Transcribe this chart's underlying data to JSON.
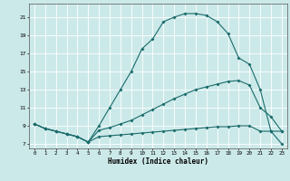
{
  "xlabel": "Humidex (Indice chaleur)",
  "background_color": "#cce9e9",
  "grid_color": "#ffffff",
  "line_color": "#1a6b6b",
  "xlim": [
    -0.5,
    23.5
  ],
  "ylim": [
    6.5,
    22.5
  ],
  "xticks": [
    0,
    1,
    2,
    3,
    4,
    5,
    6,
    7,
    8,
    9,
    10,
    11,
    12,
    13,
    14,
    15,
    16,
    17,
    18,
    19,
    20,
    21,
    22,
    23
  ],
  "yticks": [
    7,
    9,
    11,
    13,
    15,
    17,
    19,
    21
  ],
  "top_x": [
    0,
    1,
    2,
    3,
    4,
    5,
    6,
    7,
    8,
    9,
    10,
    11,
    12,
    13,
    14,
    15,
    16,
    17,
    18,
    19,
    20,
    21,
    22,
    23
  ],
  "top_y": [
    9.2,
    8.7,
    8.4,
    8.1,
    7.8,
    7.2,
    9.0,
    11.0,
    13.0,
    15.0,
    17.5,
    18.6,
    20.5,
    21.0,
    21.4,
    21.4,
    21.2,
    20.5,
    19.2,
    16.5,
    15.8,
    13.0,
    8.4,
    7.0
  ],
  "mid_x": [
    0,
    1,
    2,
    3,
    4,
    5,
    6,
    7,
    8,
    9,
    10,
    11,
    12,
    13,
    14,
    15,
    16,
    17,
    18,
    19,
    20,
    21,
    22,
    23
  ],
  "mid_y": [
    9.2,
    8.7,
    8.4,
    8.1,
    7.8,
    7.2,
    8.5,
    8.8,
    9.2,
    9.6,
    10.2,
    10.8,
    11.4,
    12.0,
    12.5,
    13.0,
    13.3,
    13.6,
    13.9,
    14.0,
    13.5,
    11.0,
    10.0,
    8.4
  ],
  "low_x": [
    0,
    1,
    2,
    3,
    4,
    5,
    6,
    7,
    8,
    9,
    10,
    11,
    12,
    13,
    14,
    15,
    16,
    17,
    18,
    19,
    20,
    21,
    22,
    23
  ],
  "low_y": [
    9.2,
    8.7,
    8.4,
    8.1,
    7.8,
    7.2,
    7.8,
    7.9,
    8.0,
    8.1,
    8.2,
    8.3,
    8.4,
    8.5,
    8.6,
    8.7,
    8.8,
    8.9,
    8.9,
    9.0,
    9.0,
    8.4,
    8.4,
    8.4
  ]
}
